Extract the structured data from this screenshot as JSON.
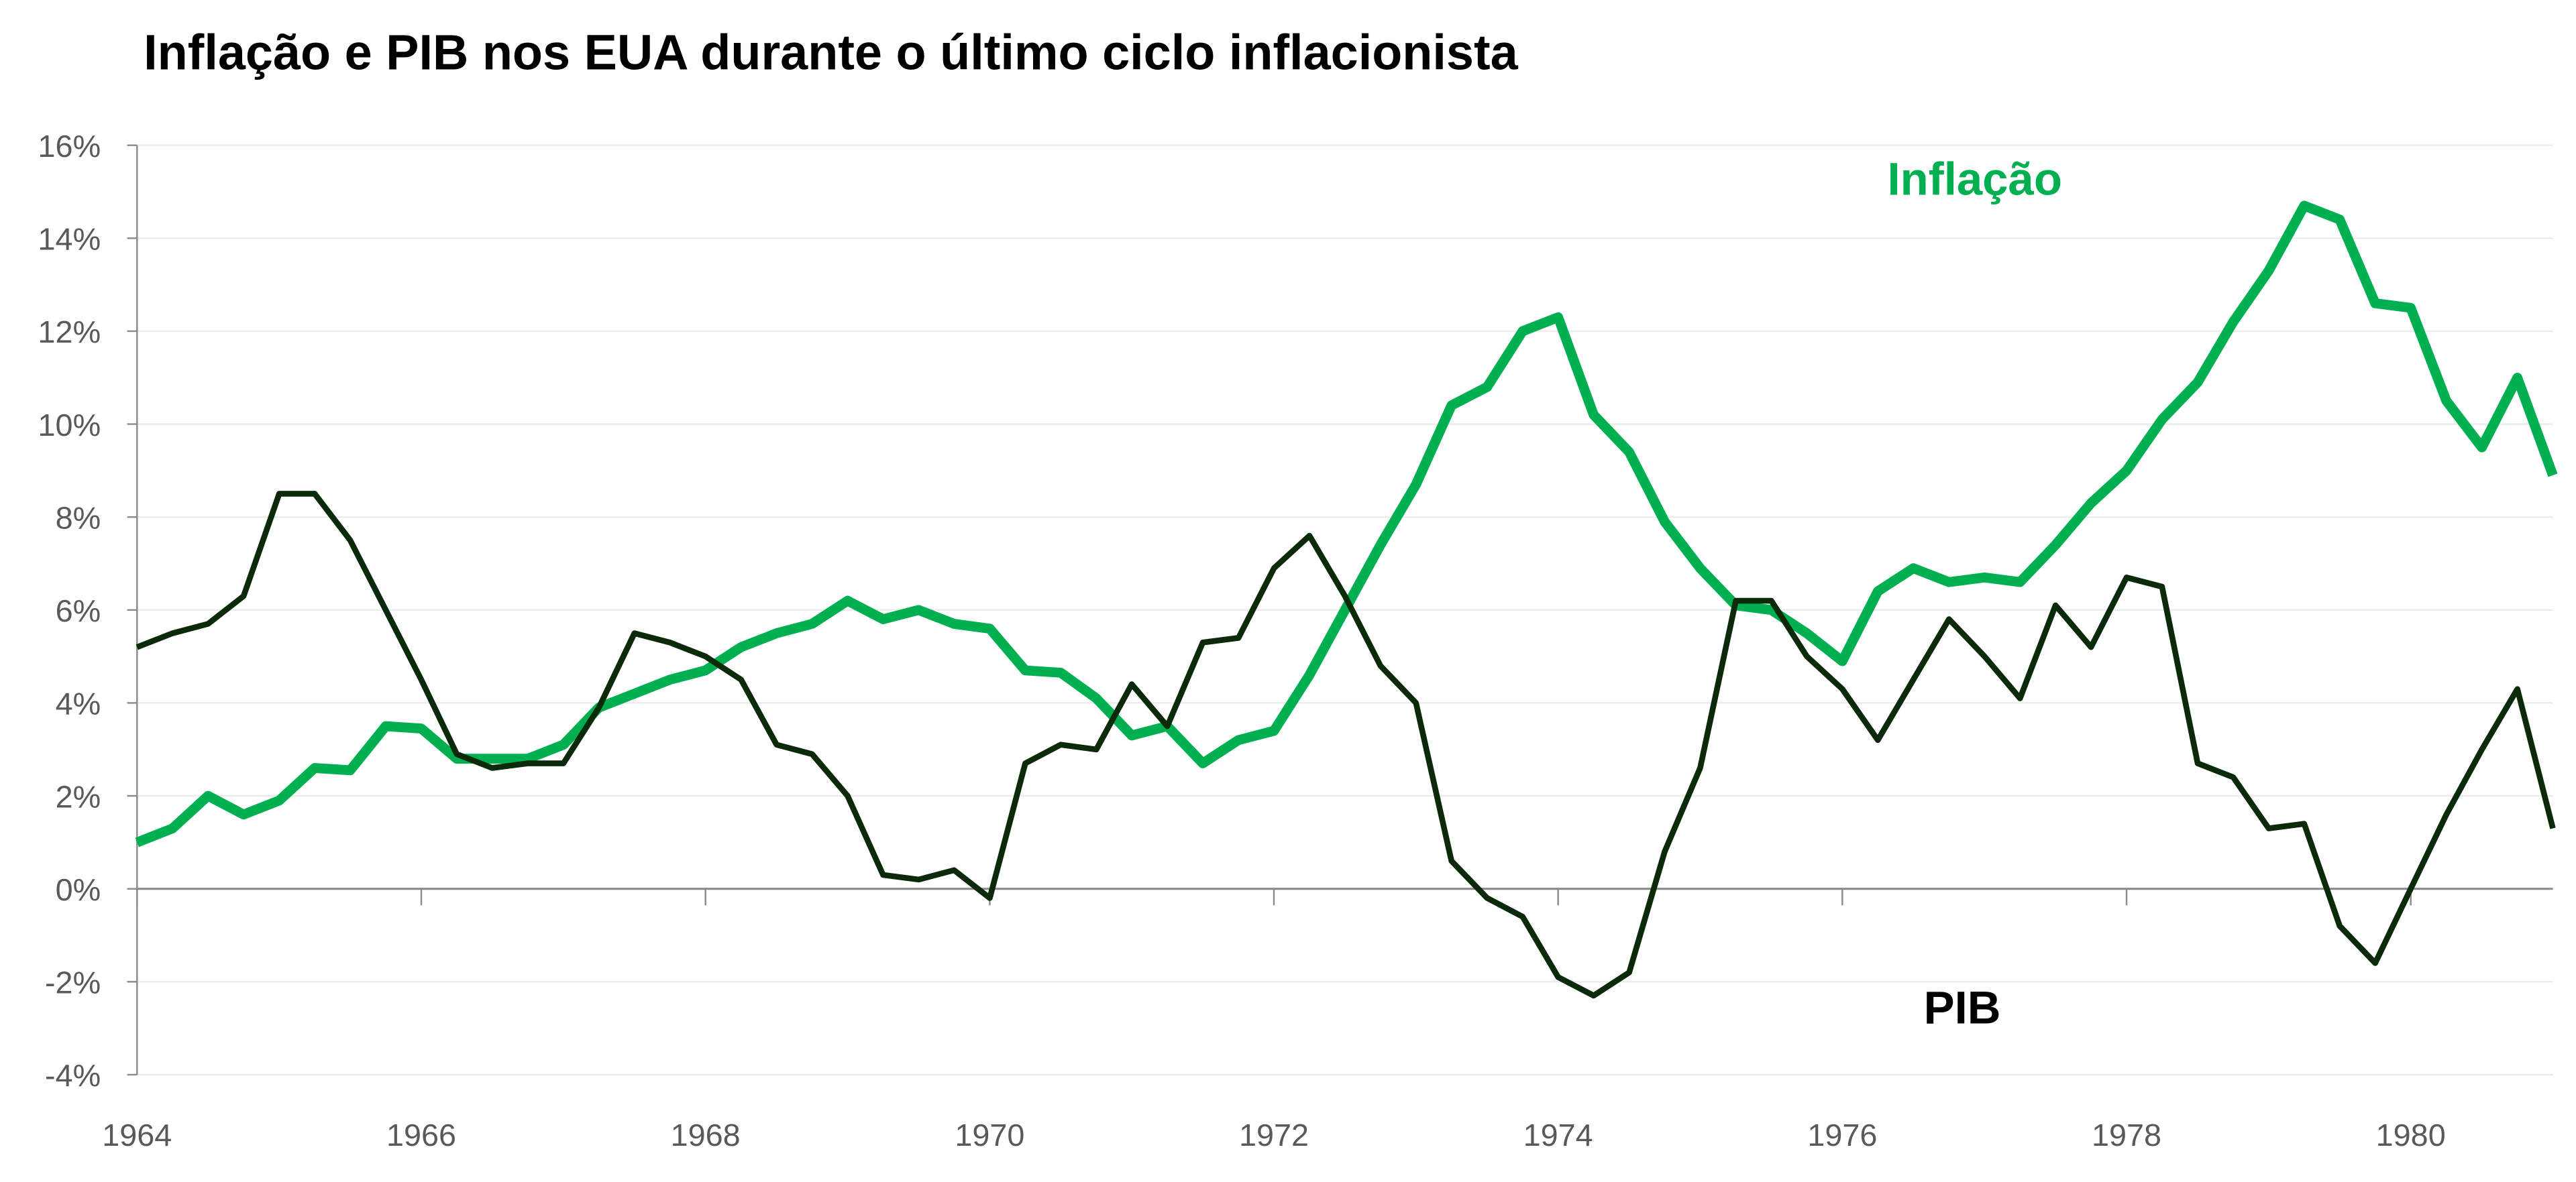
{
  "chart_data": {
    "type": "line",
    "title": "Inflação e PIB nos EUA durante o último ciclo inflacionista",
    "xlabel": "",
    "ylabel": "",
    "x_start": 1964,
    "x_step": 0.25,
    "xlim": [
      1964,
      1981
    ],
    "ylim": [
      -4,
      16
    ],
    "x_ticks": [
      1964,
      1966,
      1968,
      1970,
      1972,
      1974,
      1976,
      1978,
      1980
    ],
    "x_tick_labels": [
      "1964",
      "1966",
      "1968",
      "1970",
      "1972",
      "1974",
      "1976",
      "1978",
      "1980"
    ],
    "y_ticks": [
      -4,
      -2,
      0,
      2,
      4,
      6,
      8,
      10,
      12,
      14,
      16
    ],
    "y_tick_labels": [
      "-4%",
      "-2%",
      "0%",
      "2%",
      "4%",
      "6%",
      "8%",
      "10%",
      "12%",
      "14%",
      "16%"
    ],
    "grid": true,
    "series": [
      {
        "name": "Inflação",
        "color": "#00b050",
        "values": [
          1.0,
          1.3,
          2.0,
          1.6,
          1.9,
          2.6,
          2.55,
          3.5,
          3.45,
          2.8,
          2.8,
          2.8,
          3.1,
          3.9,
          4.2,
          4.5,
          4.7,
          5.2,
          5.5,
          5.7,
          6.2,
          5.8,
          6.0,
          5.7,
          5.6,
          4.7,
          4.65,
          4.1,
          3.3,
          3.5,
          2.7,
          3.2,
          3.4,
          4.6,
          6.0,
          7.4,
          8.7,
          10.4,
          10.8,
          12.0,
          12.3,
          10.2,
          9.4,
          7.9,
          6.9,
          6.1,
          6.0,
          5.5,
          4.9,
          6.4,
          6.9,
          6.6,
          6.7,
          6.6,
          7.4,
          8.3,
          9.0,
          10.1,
          10.9,
          12.2,
          13.3,
          14.7,
          14.4,
          12.6,
          12.5,
          10.5,
          9.5,
          11.0,
          8.9
        ]
      },
      {
        "name": "PIB",
        "color": "#0a2a0a",
        "values": [
          5.2,
          5.5,
          5.7,
          6.3,
          8.5,
          8.5,
          7.5,
          6.0,
          4.5,
          2.9,
          2.6,
          2.7,
          2.7,
          3.9,
          5.5,
          5.3,
          5.0,
          4.5,
          3.1,
          2.9,
          2.0,
          0.3,
          0.2,
          0.4,
          -0.2,
          2.7,
          3.1,
          3.0,
          4.4,
          3.5,
          5.3,
          5.4,
          6.9,
          7.6,
          6.3,
          4.8,
          4.0,
          0.6,
          -0.2,
          -0.6,
          -1.9,
          -2.3,
          -1.8,
          0.8,
          2.6,
          6.2,
          6.2,
          5.0,
          4.3,
          3.2,
          4.5,
          5.8,
          5.0,
          4.1,
          6.1,
          5.2,
          6.7,
          6.5,
          2.7,
          2.4,
          1.3,
          1.4,
          -0.8,
          -1.6,
          0.0,
          1.6,
          3.0,
          4.3,
          1.3
        ]
      }
    ],
    "annotations": [
      "Inflação",
      "PIB"
    ]
  }
}
